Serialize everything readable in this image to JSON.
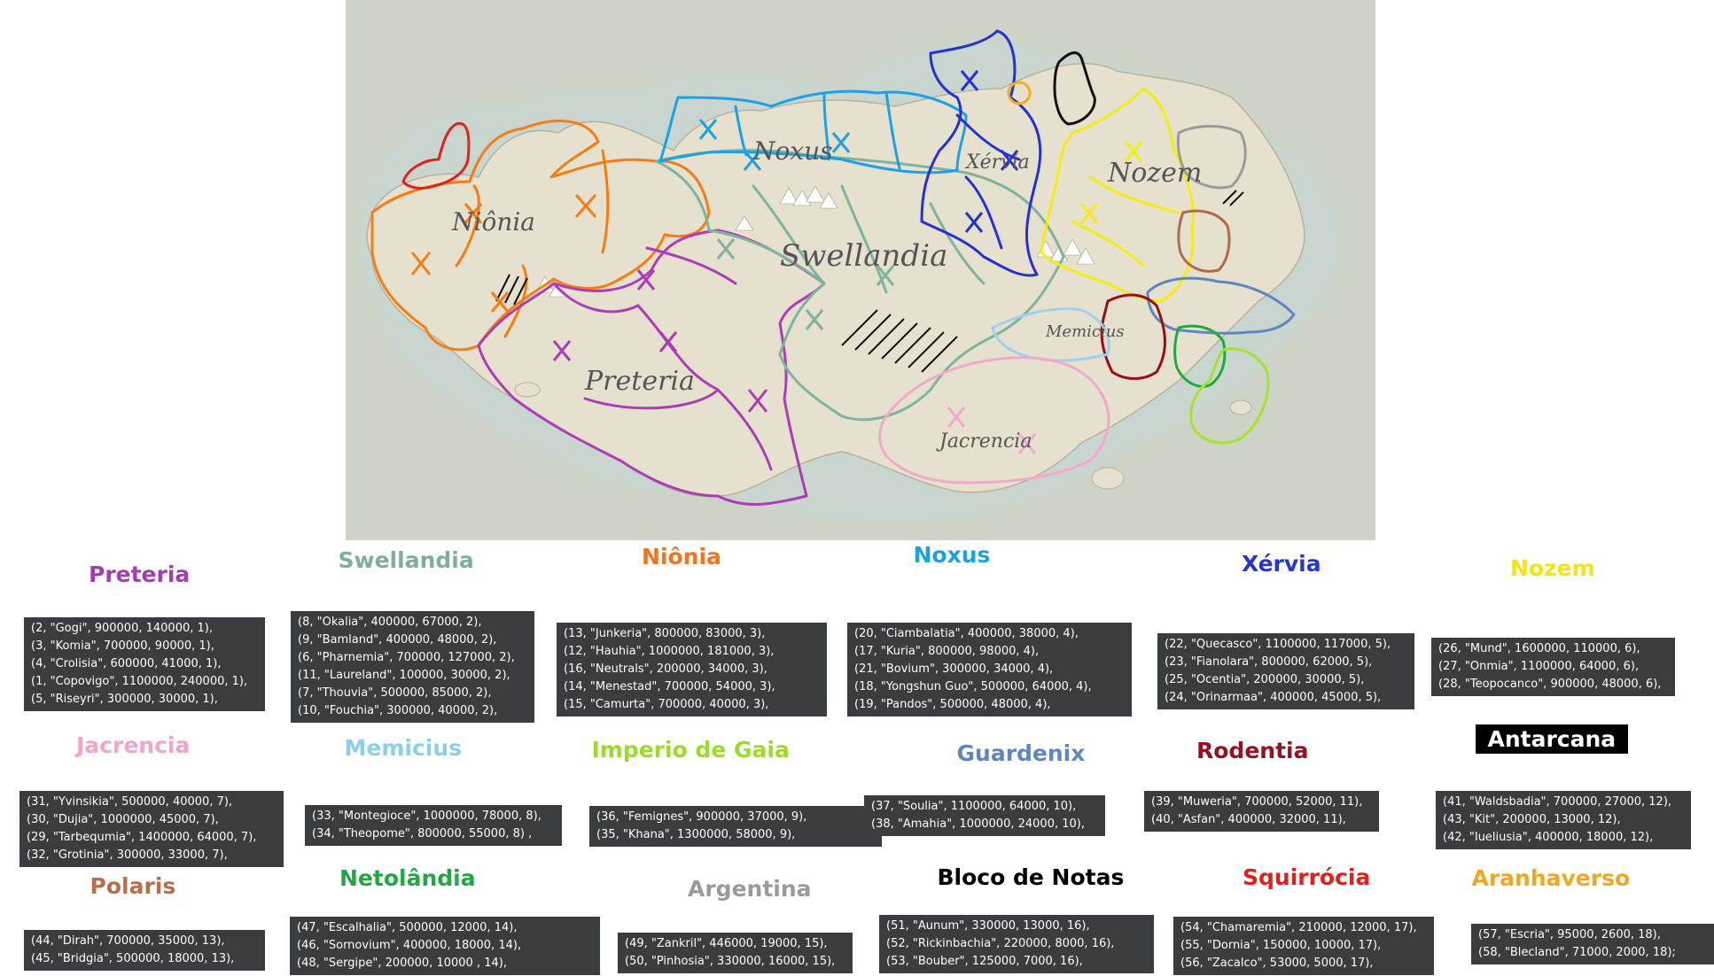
{
  "map": {
    "labels": [
      "Niônia",
      "Noxus",
      "Xérvia",
      "Nozem",
      "Swellandia",
      "Preteria",
      "Memicius",
      "Jacrencia"
    ],
    "colors": {
      "sea": "#c3cfc9",
      "land": "#e7e2d2",
      "niionia": "#f77d13",
      "noxus": "#1aa1e6",
      "xervia": "#2332d0",
      "nozem": "#f5ec11",
      "swellandia": "#7fb39c",
      "preteria": "#ad3cb8",
      "memicius": "#9fd2ea",
      "jacrencia": "#f3a8cd",
      "rodentia": "#9a0e16",
      "netolandia": "#1eaa3f",
      "gaia": "#a6e22e",
      "guardenix": "#5f86c2",
      "polaris": "#b26b49",
      "antarcana": "#111111",
      "squirrocia_red": "#e3211c",
      "aranhaverso": "#f4ad22",
      "argentina": "#9b9b9b"
    }
  },
  "countries": [
    {
      "name": "Preteria",
      "color": "#a23fb0",
      "boxed": false,
      "entries": [
        "(2, \"Gogi\",  900000, 140000, 1),",
        "(3, \"Komia\", 700000, 90000, 1),",
        "(4, \"Crolisia\", 600000, 41000, 1),",
        "(1, \"Copovigo\",  1100000, 240000, 1),",
        "(5, \"Riseyri\", 300000, 30000, 1),"
      ]
    },
    {
      "name": "Swellandia",
      "color": "#7fae99",
      "boxed": false,
      "entries": [
        "(8, \"Okalia\", 400000, 67000, 2),",
        "(9, \"Bamland\", 400000, 48000, 2),",
        "(6, \"Pharnemia\", 700000, 127000, 2),",
        "(11, \"Laureland\", 100000, 30000, 2),",
        "(7, \"Thouvia\", 500000, 85000, 2),",
        "(10, \"Fouchia\", 300000, 40000, 2),"
      ]
    },
    {
      "name": "Niônia",
      "color": "#f0761e",
      "boxed": false,
      "entries": [
        "(13, \"Junkeria\", 800000, 83000, 3),",
        "(12, \"Hauhia\", 1000000, 181000, 3),",
        "(16, \"Neutrals\", 200000, 34000, 3),",
        "(14, \"Menestad\", 700000, 54000, 3),",
        "(15, \"Camurta\", 700000, 40000, 3),"
      ]
    },
    {
      "name": "Noxus",
      "color": "#1aa3e0",
      "boxed": false,
      "entries": [
        "(20, \"Ciambalatia\", 400000, 38000, 4),",
        "(17, \"Kuria\", 800000, 98000, 4),",
        "(21, \"Bovium\", 300000, 34000, 4),",
        "(18, \"Yongshun Guo\", 500000, 64000, 4),",
        "(19, \"Pandos\", 500000, 48000, 4),"
      ]
    },
    {
      "name": "Xérvia",
      "color": "#2638c8",
      "boxed": false,
      "entries": [
        "(22, \"Quecasco\", 1100000, 117000, 5),",
        "(23, \"Fianolara\", 800000, 62000, 5),",
        "(25, \"Ocentia\", 200000, 30000, 5),",
        "(24, \"Orinarmaa\", 400000, 45000, 5),"
      ]
    },
    {
      "name": "Nozem",
      "color": "#f2e31a",
      "boxed": false,
      "entries": [
        "(26, \"Mund\", 1600000, 110000, 6),",
        "(27, \"Onmia\", 1100000, 64000, 6),",
        "(28, \"Teopocanco\", 900000, 48000, 6),"
      ]
    },
    {
      "name": "Jacrencia",
      "color": "#f5a3c7",
      "boxed": false,
      "entries": [
        "(31, \"Yvinsikia\", 500000, 40000, 7),",
        "(30, \"Dujia\", 1000000, 45000, 7),",
        "(29, \"Tarbequmia\", 1400000, 64000, 7),",
        "(32, \"Grotinia\", 300000, 33000, 7),"
      ]
    },
    {
      "name": "Memicius",
      "color": "#8fcfe6",
      "boxed": false,
      "entries": [
        "(33, \"Montegioce\", 1000000, 78000, 8),",
        "(34, \"Theopome\", 800000, 55000, 8) ,"
      ]
    },
    {
      "name": "Imperio de Gaia",
      "color": "#9bdc2b",
      "boxed": false,
      "entries": [
        "(36, \"Femignes\", 900000, 37000, 9),",
        "(35, \"Khana\", 1300000, 58000, 9),"
      ]
    },
    {
      "name": "Guardenix",
      "color": "#5f86c0",
      "boxed": false,
      "entries": [
        "(37, \"Soulia\", 1100000, 64000, 10),",
        "(38, \"Amahia\", 1000000, 24000, 10),"
      ]
    },
    {
      "name": "Rodentia",
      "color": "#9b1020",
      "boxed": false,
      "entries": [
        "(39, \"Muweria\", 700000, 52000, 11),",
        "(40, \"Asfan\", 400000, 32000, 11),"
      ]
    },
    {
      "name": "Antarcana",
      "color": "#ffffff",
      "boxed": true,
      "entries": [
        "(41, \"Waldsbadia\", 700000, 27000, 12),",
        "(43, \"Kit\", 200000, 13000, 12),",
        "(42, \"Iueliusia\", 400000, 18000, 12),"
      ]
    },
    {
      "name": "Polaris",
      "color": "#b57049",
      "boxed": false,
      "entries": [
        "(44, \"Dirah\", 700000, 35000, 13),",
        "(45, \"Bridgia\", 500000, 18000, 13),"
      ]
    },
    {
      "name": "Netolândia",
      "color": "#21a845",
      "boxed": false,
      "entries": [
        "(47, \"Escalhalia\", 500000, 12000, 14),",
        "(46, \"Sornovium\", 400000, 18000, 14),",
        "(48, \"Sergipe\", 200000, 10000 , 14),"
      ]
    },
    {
      "name": "Argentina",
      "color": "#9a9a9a",
      "boxed": false,
      "entries": [
        "(49, \"Zankril\", 446000, 19000, 15),",
        "(50, \"Pinhosia\", 330000, 16000, 15),"
      ]
    },
    {
      "name": "Bloco de Notas",
      "color": "#000000",
      "boxed": false,
      "entries": [
        "(51, \"Aunum\", 330000, 13000, 16),",
        "(52, \"Rickinbachia\", 220000, 8000, 16),",
        "(53, \"Bouber\", 125000, 7000, 16),"
      ]
    },
    {
      "name": "Squirrócia",
      "color": "#e0201c",
      "boxed": false,
      "entries": [
        "(54, \"Chamaremia\", 210000, 12000, 17),",
        "(55, \"Dornia\", 150000, 10000, 17),",
        "(56, \"Zacalco\", 53000, 5000,  17),"
      ]
    },
    {
      "name": "Aranhaverso",
      "color": "#f2a81e",
      "boxed": false,
      "entries": [
        "(57, \"Escria\", 95000, 2600, 18),",
        "(58, \"Blecland\", 71000, 2000, 18);"
      ]
    }
  ]
}
